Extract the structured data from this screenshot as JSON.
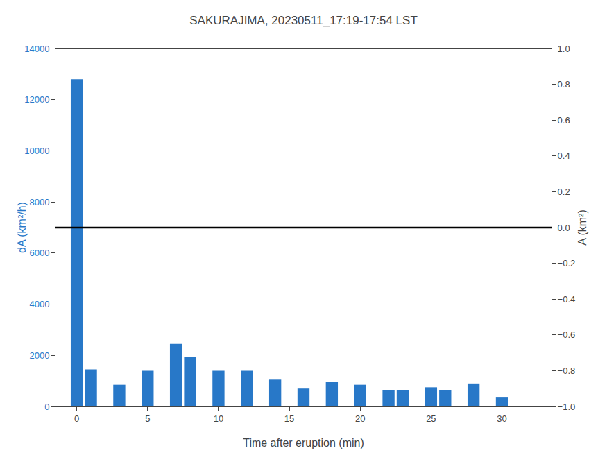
{
  "chart_data": {
    "type": "bar",
    "title": "SAKURAJIMA, 20230511_17:19-17:54 LST",
    "x_label": "Time after eruption (min)",
    "y_label": "dA (km²/h)",
    "y2_label": "A (km²)",
    "x": [
      0,
      1,
      2,
      3,
      4,
      5,
      6,
      7,
      8,
      9,
      10,
      11,
      12,
      13,
      14,
      15,
      16,
      17,
      18,
      19,
      20,
      21,
      22,
      23,
      24,
      25,
      26,
      27,
      28,
      29,
      30,
      31,
      32
    ],
    "values": [
      12800,
      1450,
      0,
      850,
      0,
      1400,
      0,
      2450,
      1950,
      0,
      1400,
      0,
      1400,
      0,
      1050,
      0,
      700,
      0,
      950,
      0,
      850,
      0,
      650,
      650,
      0,
      750,
      650,
      0,
      900,
      0,
      350,
      0,
      0
    ],
    "color": "#2878C8",
    "xlim": [
      -1.5,
      33.5
    ],
    "xticks": [
      0,
      5,
      10,
      15,
      20,
      25,
      30
    ],
    "ylim": [
      0,
      14000
    ],
    "yticks": [
      0,
      2000,
      4000,
      6000,
      8000,
      10000,
      12000,
      14000
    ],
    "y2lim": [
      -1,
      1
    ],
    "y2ticks": [
      {
        "value": -1.0,
        "label": "−1.0"
      },
      {
        "value": -0.8,
        "label": "−0.8"
      },
      {
        "value": -0.6,
        "label": "−0.6"
      },
      {
        "value": -0.4,
        "label": "−0.4"
      },
      {
        "value": -0.2,
        "label": "−0.2"
      },
      {
        "value": 0.0,
        "label": "0.0"
      },
      0.2,
      0.4,
      0.6,
      0.8,
      {
        "value": 1.0,
        "label": "1.0"
      }
    ],
    "hline": {
      "y": 7000,
      "color": "black"
    },
    "grid": false
  }
}
